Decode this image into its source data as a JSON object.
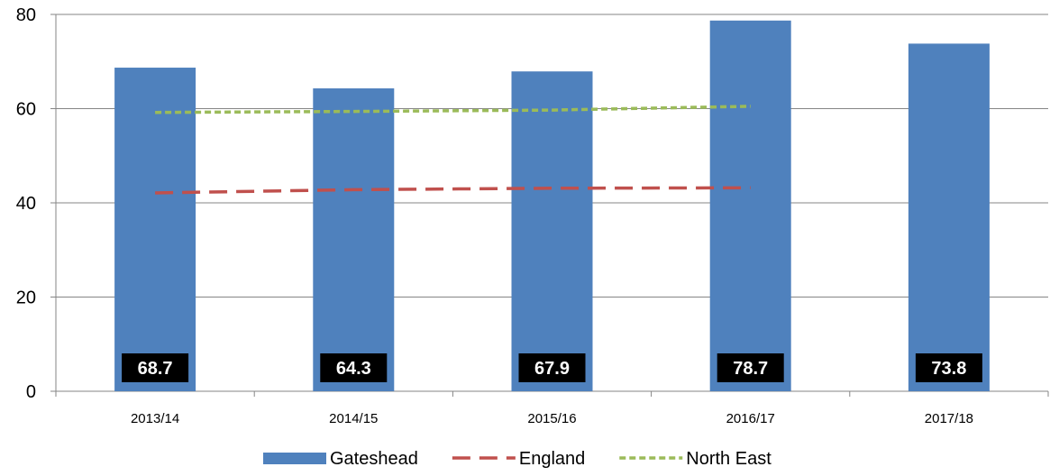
{
  "chart_data": {
    "type": "bar",
    "categories": [
      "2013/14",
      "2014/15",
      "2015/16",
      "2016/17",
      "2017/18"
    ],
    "ylim": [
      0,
      80
    ],
    "yticks": [
      0,
      20,
      40,
      60,
      80
    ],
    "grid": true,
    "legend_position": "bottom",
    "series": [
      {
        "name": "Gateshead",
        "kind": "bar",
        "color": "#4f81bd",
        "values": [
          68.7,
          64.3,
          67.9,
          78.7,
          73.8
        ],
        "labels": [
          "68.7",
          "64.3",
          "67.9",
          "78.7",
          "73.8"
        ]
      },
      {
        "name": "England",
        "kind": "line",
        "style": "long-dash",
        "color": "#c0504d",
        "values": [
          42.1,
          42.8,
          43.1,
          43.2,
          null
        ]
      },
      {
        "name": "North East",
        "kind": "line",
        "style": "short-dash",
        "color": "#9bbb59",
        "values": [
          59.2,
          59.4,
          59.7,
          60.5,
          null
        ]
      }
    ]
  }
}
